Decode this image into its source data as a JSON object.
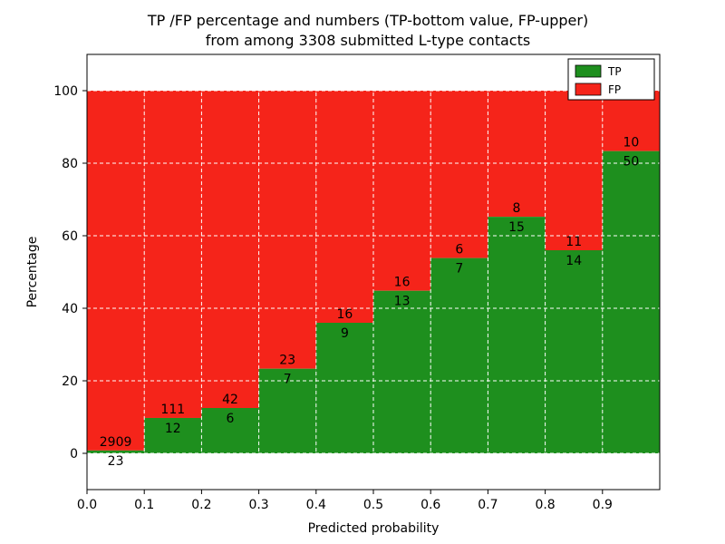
{
  "figure": {
    "title_line1": "TP /FP percentage and numbers (TP-bottom value, FP-upper)",
    "title_line2": "from among 3308 submitted L-type contacts"
  },
  "chart_data": {
    "type": "bar",
    "stacked": true,
    "orientation": "vertical",
    "title": "TP /FP percentage and numbers (TP-bottom value, FP-upper)\nfrom among 3308 submitted L-type contacts",
    "xlabel": "Predicted probability",
    "ylabel": "Percentage",
    "total_submitted_contacts": 3308,
    "x_bins": [
      0.0,
      0.1,
      0.2,
      0.3,
      0.4,
      0.5,
      0.6,
      0.7,
      0.8,
      0.9
    ],
    "bin_width": 0.1,
    "series": [
      {
        "name": "TP",
        "color": "#1e8f1e",
        "counts": [
          23,
          12,
          6,
          7,
          9,
          13,
          7,
          15,
          14,
          50
        ]
      },
      {
        "name": "FP",
        "color": "#f5241a",
        "counts": [
          2909,
          111,
          42,
          23,
          16,
          16,
          6,
          8,
          11,
          10
        ]
      }
    ],
    "tp_percentages": [
      0.78,
      9.76,
      12.5,
      23.33,
      36.0,
      44.83,
      53.85,
      65.22,
      56.0,
      83.33
    ],
    "bar_top_percentage": 100,
    "xlim": [
      0.0,
      1.0
    ],
    "ylim": [
      -10,
      110
    ],
    "xtick_labels": [
      "0.0",
      "0.1",
      "0.2",
      "0.3",
      "0.4",
      "0.5",
      "0.6",
      "0.7",
      "0.8",
      "0.9"
    ],
    "yticks": [
      0,
      20,
      40,
      60,
      80,
      100
    ],
    "grid": {
      "show": true,
      "color": "#ffffff",
      "style": "dashed"
    },
    "legend": {
      "position": "upper right",
      "entries": [
        {
          "label": "TP",
          "color": "#1e8f1e"
        },
        {
          "label": "FP",
          "color": "#f5241a"
        }
      ]
    }
  }
}
